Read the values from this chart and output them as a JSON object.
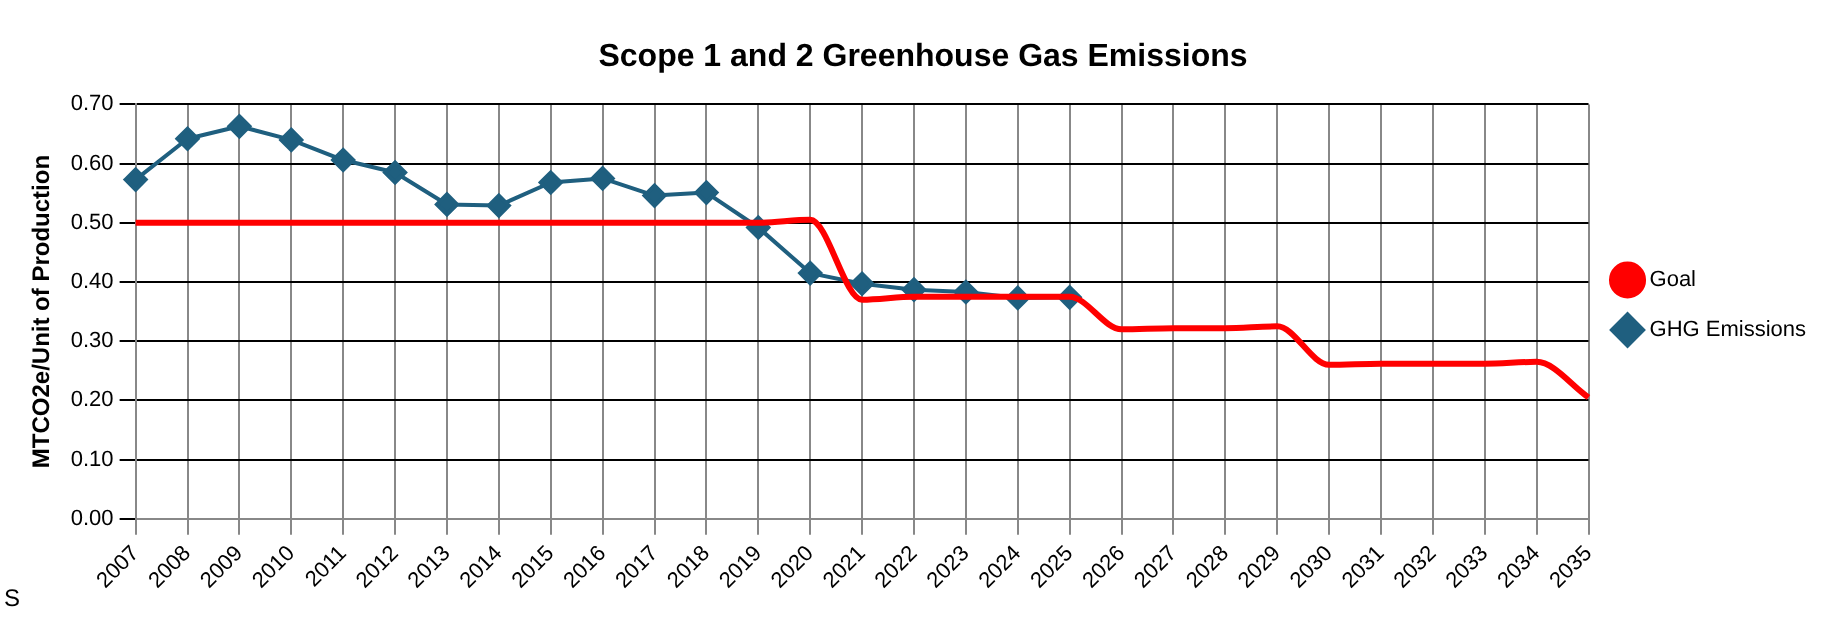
{
  "chart_data": {
    "type": "line",
    "title": "Scope 1 and 2 Greenhouse Gas Emissions",
    "ylabel": "MTCO2e/Unit of Production",
    "categories": [
      "2007",
      "2008",
      "2009",
      "2010",
      "2011",
      "2012",
      "2013",
      "2014",
      "2015",
      "2016",
      "2017",
      "2018",
      "2019",
      "2020",
      "2021",
      "2022",
      "2023",
      "2024",
      "2025",
      "2026",
      "2027",
      "2028",
      "2029",
      "2030",
      "2031",
      "2032",
      "2033",
      "2034",
      "2035"
    ],
    "series": [
      {
        "name": "GHG Emissions",
        "color": "#1f5f7f",
        "marker": "diamond",
        "values": [
          0.573,
          0.642,
          0.663,
          0.64,
          0.606,
          0.585,
          0.531,
          0.529,
          0.568,
          0.575,
          0.546,
          0.551,
          0.492,
          0.415,
          0.397,
          0.387,
          0.383,
          0.373,
          0.374,
          null,
          null,
          null,
          null,
          null,
          null,
          null,
          null,
          null,
          null
        ]
      },
      {
        "name": "Goal",
        "color": "#ff0000",
        "marker": "none",
        "values": [
          0.5,
          0.5,
          0.5,
          0.5,
          0.5,
          0.5,
          0.5,
          0.5,
          0.5,
          0.5,
          0.5,
          0.5,
          0.5,
          0.505,
          0.37,
          0.375,
          0.375,
          0.375,
          0.375,
          0.32,
          0.322,
          0.322,
          0.325,
          0.26,
          0.262,
          0.262,
          0.262,
          0.265,
          0.205
        ]
      }
    ],
    "ylim": [
      0,
      0.7
    ],
    "yticks": [
      {
        "value": 0,
        "label": "0.00"
      },
      {
        "value": 0.1,
        "label": "0.10"
      },
      {
        "value": 0.2,
        "label": "0.20"
      },
      {
        "value": 0.3,
        "label": "0.30"
      },
      {
        "value": 0.4,
        "label": "0.40"
      },
      {
        "value": 0.5,
        "label": "0.50"
      },
      {
        "value": 0.6,
        "label": "0.60"
      },
      {
        "value": 0.7,
        "label": "0.70"
      }
    ],
    "grid": true,
    "legend": "right",
    "annotations": [
      "S"
    ]
  }
}
